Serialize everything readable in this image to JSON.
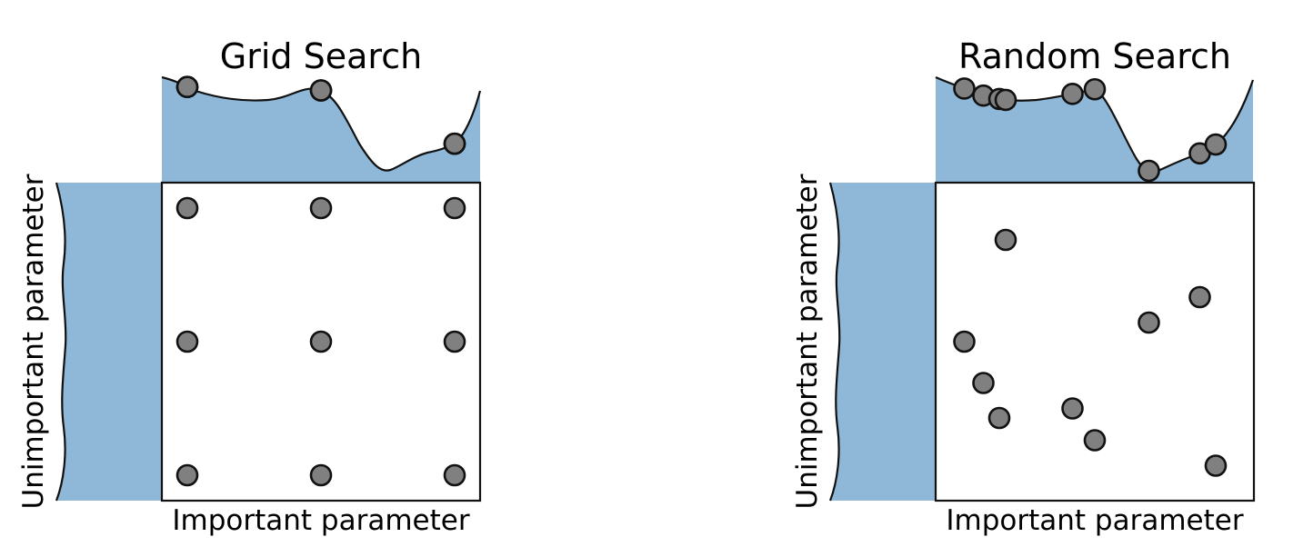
{
  "colors": {
    "fill": "#8fb8d8",
    "dot": "#808080",
    "line": "#111111",
    "background": "#ffffff"
  },
  "panels": [
    {
      "id": "grid",
      "title": "Grid Search",
      "xlabel": "Important parameter",
      "ylabel": "Unimportant parameter",
      "points": [
        [
          0.08,
          0.92
        ],
        [
          0.5,
          0.92
        ],
        [
          0.92,
          0.92
        ],
        [
          0.08,
          0.5
        ],
        [
          0.5,
          0.5
        ],
        [
          0.92,
          0.5
        ],
        [
          0.08,
          0.08
        ],
        [
          0.5,
          0.08
        ],
        [
          0.92,
          0.08
        ]
      ]
    },
    {
      "id": "random",
      "title": "Random Search",
      "xlabel": "Important parameter",
      "ylabel": "Unimportant parameter",
      "points": [
        [
          0.09,
          0.5
        ],
        [
          0.15,
          0.37
        ],
        [
          0.2,
          0.26
        ],
        [
          0.22,
          0.82
        ],
        [
          0.43,
          0.29
        ],
        [
          0.5,
          0.19
        ],
        [
          0.67,
          0.56
        ],
        [
          0.83,
          0.64
        ],
        [
          0.88,
          0.11
        ]
      ]
    }
  ]
}
